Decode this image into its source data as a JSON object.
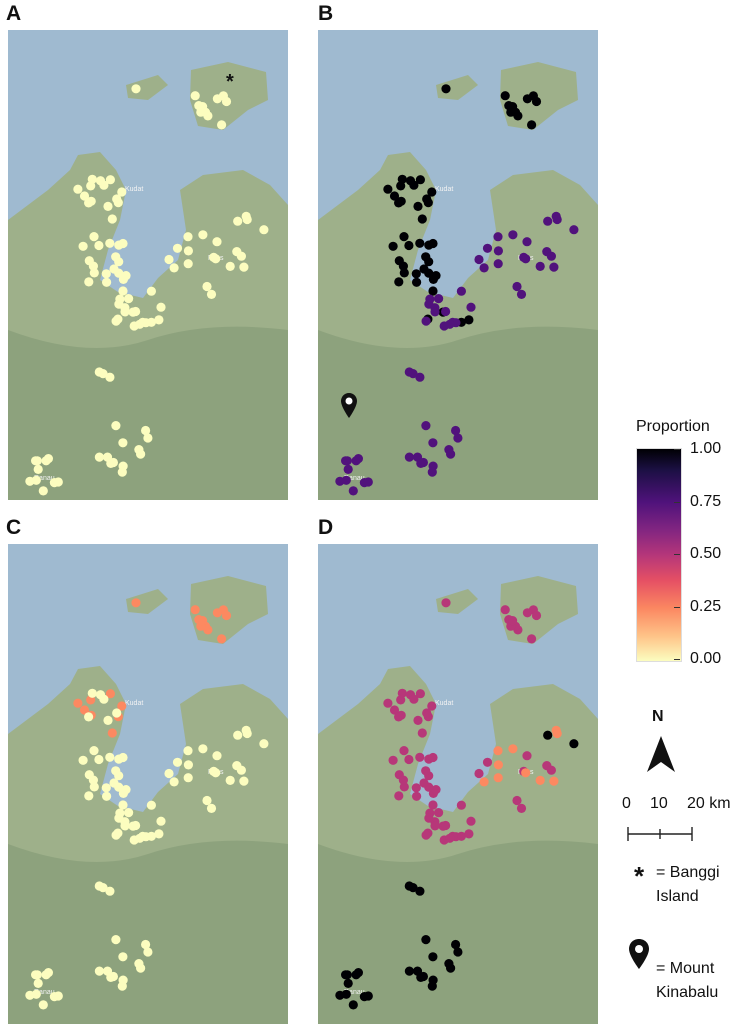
{
  "panels": [
    {
      "letter": "A",
      "town_labels": [
        "Kudat",
        "Pitas",
        "Ranau"
      ]
    },
    {
      "letter": "B",
      "town_labels": [
        "Kudat",
        "Pitas",
        "Ranau"
      ]
    },
    {
      "letter": "C",
      "town_labels": [
        "Kudat",
        "Pitas",
        "Ranau"
      ]
    },
    {
      "letter": "D",
      "town_labels": [
        "Kudat",
        "Pitas",
        "Ranau"
      ]
    }
  ],
  "legend": {
    "title": "Proportion",
    "ticks": [
      "1.00",
      "0.75",
      "0.50",
      "0.25",
      "0.00"
    ],
    "colors": [
      "#000004",
      "#51127c",
      "#b73779",
      "#fc8961",
      "#fcfdbf"
    ]
  },
  "north_arrow": {
    "label": "N",
    "icon": "north-arrow-icon"
  },
  "scale_bar": {
    "labels": [
      "0",
      "10",
      "20 km"
    ]
  },
  "annotations": {
    "asterisk_symbol": "*",
    "asterisk_text_line1": "= Banggi",
    "asterisk_text_line2": "Island",
    "pin_icon": "map-pin-icon",
    "pin_text_line1": "= Mount",
    "pin_text_line2": "Kinabalu"
  },
  "map_colors": {
    "sea": "#9fbad0",
    "land": "#9eb08a",
    "hill": "#7f9772"
  }
}
